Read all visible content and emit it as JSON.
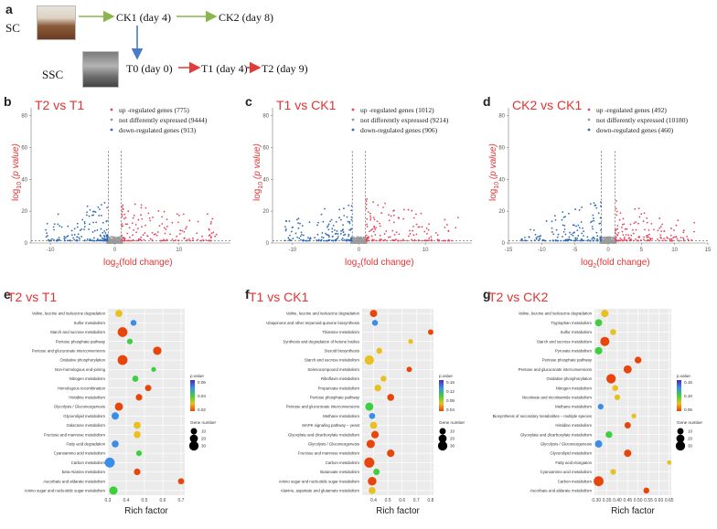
{
  "panel_a": {
    "letter": "a",
    "sc_label": "SC",
    "ssc_label": "SSC",
    "ck1": "CK1 (day 4)",
    "ck2": "CK2 (day 8)",
    "t0": "T0 (day 0)",
    "t1": "T1 (day 4)",
    "t2": "T2 (day 9)"
  },
  "volcano_axis": {
    "ylabel_main": "log",
    "ylabel_sub": "10",
    "ylabel_rest": " (p value)",
    "xlabel_main": "log",
    "xlabel_sub": "2",
    "xlabel_rest": "(fold change)"
  },
  "enrich_axis": {
    "xlabel": "Rich factor",
    "legend_p": "p.value",
    "legend_gene": "Gene number",
    "gene_sizes": [
      "10",
      "20",
      "30"
    ]
  },
  "colors": {
    "up": "#e8435a",
    "not": "#9a9a9a",
    "down": "#2f6bb3",
    "title": "#e33333"
  },
  "chart_data": [
    {
      "panel": "b",
      "type": "scatter",
      "title": "T2 vs T1",
      "legend": [
        "up -regulated genes (775)",
        "not differently expressed (9444)",
        "down-regulated genes (913)"
      ],
      "xlim": [
        -13,
        18
      ],
      "ylim": [
        0,
        85
      ],
      "xticks": [
        "-10",
        "0",
        "10"
      ],
      "xtick_vals": [
        -10,
        0,
        10
      ],
      "yticks": [
        "0",
        "20",
        "40",
        "60",
        "80"
      ],
      "ytick_vals": [
        0,
        20,
        40,
        60,
        80
      ],
      "thresholds": [
        -1,
        1
      ],
      "pline": 1.3,
      "up_count": 775,
      "not_count": 9444,
      "down_count": 913
    },
    {
      "panel": "c",
      "type": "scatter",
      "title": "T1 vs CK1",
      "legend": [
        "up -regulated genes (1012)",
        "not differently expressed (9214)",
        "down-regulated genes (906)"
      ],
      "xlim": [
        -13,
        17
      ],
      "ylim": [
        0,
        85
      ],
      "xticks": [
        "-10",
        "0",
        "10"
      ],
      "xtick_vals": [
        -10,
        0,
        10
      ],
      "yticks": [
        "0",
        "20",
        "40",
        "60",
        "80"
      ],
      "ytick_vals": [
        0,
        20,
        40,
        60,
        80
      ],
      "thresholds": [
        -1,
        1
      ],
      "pline": 1.3,
      "up_count": 1012,
      "not_count": 9214,
      "down_count": 906
    },
    {
      "panel": "d",
      "type": "scatter",
      "title": "CK2 vs CK1",
      "legend": [
        "up -regulated genes (492)",
        "not differently expressed (10180)",
        "down-regulated genes (460)"
      ],
      "xlim": [
        -15,
        15
      ],
      "ylim": [
        0,
        85
      ],
      "xticks": [
        "-15",
        "-10",
        "-5",
        "0",
        "5",
        "10",
        "15"
      ],
      "xtick_vals": [
        -15,
        -10,
        -5,
        0,
        5,
        10,
        15
      ],
      "yticks": [
        "0",
        "20",
        "40",
        "60",
        "80"
      ],
      "ytick_vals": [
        0,
        20,
        40,
        60,
        80
      ],
      "thresholds": [
        -1,
        1
      ],
      "pline": 1.3,
      "up_count": 492,
      "not_count": 10180,
      "down_count": 460
    },
    {
      "panel": "e",
      "type": "scatter",
      "title": "T2 vs T1",
      "xlim": [
        0.3,
        0.72
      ],
      "xticks": [
        "0.3",
        "0.4",
        "0.5",
        "0.6",
        "0.7"
      ],
      "xtick_vals": [
        0.3,
        0.4,
        0.5,
        0.6,
        0.7
      ],
      "pscale": [
        "0.06",
        "0.04",
        "0.02"
      ],
      "pathways": [
        {
          "name": "Valine, leucine and isoleucine degradation",
          "x": 0.36,
          "p": 0.03,
          "n": 14
        },
        {
          "name": "Sulfur metabolism",
          "x": 0.44,
          "p": 0.055,
          "n": 8
        },
        {
          "name": "Starch and sucrose metabolism",
          "x": 0.38,
          "p": 0.002,
          "n": 33
        },
        {
          "name": "Pentose phosphate pathway",
          "x": 0.42,
          "p": 0.05,
          "n": 7
        },
        {
          "name": "Pentose and glucuronate interconversions",
          "x": 0.57,
          "p": 0.008,
          "n": 22
        },
        {
          "name": "Oxidative phosphorylation",
          "x": 0.38,
          "p": 0.004,
          "n": 34
        },
        {
          "name": "Non-homologous end-joining",
          "x": 0.55,
          "p": 0.045,
          "n": 4
        },
        {
          "name": "Nitrogen metabolism",
          "x": 0.45,
          "p": 0.05,
          "n": 9
        },
        {
          "name": "Homologous recombination",
          "x": 0.52,
          "p": 0.015,
          "n": 10
        },
        {
          "name": "Histidine metabolism",
          "x": 0.47,
          "p": 0.02,
          "n": 11
        },
        {
          "name": "Glycolysis / Gluconeogenesis",
          "x": 0.36,
          "p": 0.02,
          "n": 20
        },
        {
          "name": "Glycerolipid metabolism",
          "x": 0.34,
          "p": 0.06,
          "n": 15
        },
        {
          "name": "Galactose metabolism",
          "x": 0.46,
          "p": 0.025,
          "n": 14
        },
        {
          "name": "Fructose and mannose metabolism",
          "x": 0.46,
          "p": 0.025,
          "n": 13
        },
        {
          "name": "Fatty acid degradation",
          "x": 0.34,
          "p": 0.065,
          "n": 13
        },
        {
          "name": "Cyanoamino acid metabolism",
          "x": 0.47,
          "p": 0.04,
          "n": 7
        },
        {
          "name": "Carbon metabolism",
          "x": 0.31,
          "p": 0.055,
          "n": 35
        },
        {
          "name": "beta-Alanine metabolism",
          "x": 0.46,
          "p": 0.02,
          "n": 11
        },
        {
          "name": "Ascorbate and aldarate metabolism",
          "x": 0.7,
          "p": 0.005,
          "n": 9
        },
        {
          "name": "Amino sugar and nucleotide sugar metabolism",
          "x": 0.33,
          "p": 0.04,
          "n": 22
        }
      ]
    },
    {
      "panel": "f",
      "type": "scatter",
      "title": "T1 vs CK1",
      "xlim": [
        0.32,
        0.82
      ],
      "xticks": [
        "0.4",
        "0.5",
        "0.6",
        "0.7",
        "0.8"
      ],
      "xtick_vals": [
        0.4,
        0.5,
        0.6,
        0.7,
        0.8
      ],
      "pscale": [
        "0.16",
        "0.12",
        "0.08",
        "0.04"
      ],
      "pathways": [
        {
          "name": "Valine, leucine and isoleucine degradation",
          "x": 0.4,
          "p": 0.03,
          "n": 15
        },
        {
          "name": "Ubiquinone and other terpenoid-quinone biosynthesis",
          "x": 0.41,
          "p": 0.16,
          "n": 8
        },
        {
          "name": "Thiamine metabolism",
          "x": 0.8,
          "p": 0.01,
          "n": 6
        },
        {
          "name": "Synthesis and degradation of ketone bodies",
          "x": 0.66,
          "p": 0.06,
          "n": 4
        },
        {
          "name": "Steroid biosynthesis",
          "x": 0.44,
          "p": 0.09,
          "n": 8
        },
        {
          "name": "Starch and sucrose metabolism",
          "x": 0.37,
          "p": 0.09,
          "n": 30
        },
        {
          "name": "Selenocompound metabolism",
          "x": 0.65,
          "p": 0.02,
          "n": 6
        },
        {
          "name": "Riboflavin metabolism",
          "x": 0.47,
          "p": 0.07,
          "n": 8
        },
        {
          "name": "Propanoate metabolism",
          "x": 0.43,
          "p": 0.06,
          "n": 12
        },
        {
          "name": "Pentose phosphate pathway",
          "x": 0.52,
          "p": 0.015,
          "n": 13
        },
        {
          "name": "Pentose and glucuronate interconversions",
          "x": 0.37,
          "p": 0.13,
          "n": 20
        },
        {
          "name": "Methane metabolism",
          "x": 0.39,
          "p": 0.16,
          "n": 9
        },
        {
          "name": "MAPK signaling pathway – yeast",
          "x": 0.4,
          "p": 0.09,
          "n": 14
        },
        {
          "name": "Glyoxylate and dicarboxylate metabolism",
          "x": 0.41,
          "p": 0.04,
          "n": 16
        },
        {
          "name": "Glycolysis / Gluconeogenesis",
          "x": 0.38,
          "p": 0.03,
          "n": 22
        },
        {
          "name": "Fructose and mannose metabolism",
          "x": 0.52,
          "p": 0.005,
          "n": 16
        },
        {
          "name": "Carbon metabolism",
          "x": 0.37,
          "p": 0.03,
          "n": 36
        },
        {
          "name": "Butanoate metabolism",
          "x": 0.42,
          "p": 0.12,
          "n": 10
        },
        {
          "name": "Amino sugar and nucleotide sugar metabolism",
          "x": 0.39,
          "p": 0.025,
          "n": 24
        },
        {
          "name": "Alanine, aspartate and glutamate metabolism",
          "x": 0.39,
          "p": 0.09,
          "n": 13
        }
      ]
    },
    {
      "panel": "g",
      "type": "scatter",
      "title": "T2 vs CK2",
      "xlim": [
        0.29,
        0.66
      ],
      "xticks": [
        "0.30",
        "0.35",
        "0.40",
        "0.45",
        "0.50",
        "0.55",
        "0.60",
        "0.65"
      ],
      "xtick_vals": [
        0.3,
        0.35,
        0.4,
        0.45,
        0.5,
        0.55,
        0.6,
        0.65
      ],
      "pscale": [
        "0.15",
        "0.10",
        "0.05"
      ],
      "pathways": [
        {
          "name": "Valine, leucine and isoleucine degradation",
          "x": 0.34,
          "p": 0.09,
          "n": 16
        },
        {
          "name": "Tryptophan metabolism",
          "x": 0.31,
          "p": 0.12,
          "n": 14
        },
        {
          "name": "Sulfur metabolism",
          "x": 0.38,
          "p": 0.1,
          "n": 8
        },
        {
          "name": "Starch and sucrose metabolism",
          "x": 0.34,
          "p": 0.03,
          "n": 28
        },
        {
          "name": "Pyruvate metabolism",
          "x": 0.31,
          "p": 0.13,
          "n": 16
        },
        {
          "name": "Pentose phosphate pathway",
          "x": 0.5,
          "p": 0.01,
          "n": 12
        },
        {
          "name": "Pentose and glucuronate interconversions",
          "x": 0.45,
          "p": 0.02,
          "n": 20
        },
        {
          "name": "Oxidative phosphorylation",
          "x": 0.37,
          "p": 0.01,
          "n": 30
        },
        {
          "name": "Nitrogen metabolism",
          "x": 0.39,
          "p": 0.08,
          "n": 8
        },
        {
          "name": "Nicotinate and nicotinamide metabolism",
          "x": 0.4,
          "p": 0.09,
          "n": 7
        },
        {
          "name": "Methane metabolism",
          "x": 0.32,
          "p": 0.2,
          "n": 7
        },
        {
          "name": "Biosynthesis of secondary metabolites – multiple species",
          "x": 0.48,
          "p": 0.11,
          "n": 4
        },
        {
          "name": "Histidine metabolism",
          "x": 0.45,
          "p": 0.04,
          "n": 10
        },
        {
          "name": "Glyoxylate and dicarboxylate metabolism",
          "x": 0.36,
          "p": 0.12,
          "n": 12
        },
        {
          "name": "Glycolysis / Gluconeogenesis",
          "x": 0.31,
          "p": 0.18,
          "n": 15
        },
        {
          "name": "Glycerolipid metabolism",
          "x": 0.45,
          "p": 0.015,
          "n": 15
        },
        {
          "name": "Fatty acid elongation",
          "x": 0.65,
          "p": 0.07,
          "n": 3
        },
        {
          "name": "Cyanoamino acid metabolism",
          "x": 0.38,
          "p": 0.1,
          "n": 7
        },
        {
          "name": "Carbon metabolism",
          "x": 0.31,
          "p": 0.045,
          "n": 34
        },
        {
          "name": "Ascorbate and aldarate metabolism",
          "x": 0.54,
          "p": 0.04,
          "n": 8
        }
      ]
    }
  ]
}
